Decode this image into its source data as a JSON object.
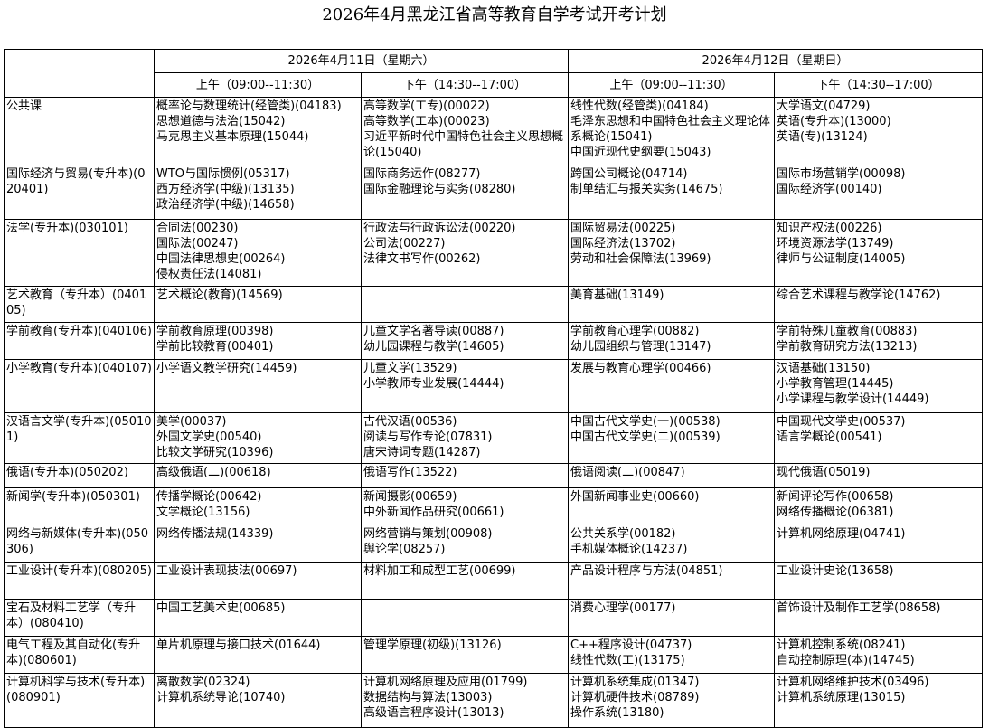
{
  "title": "2026年4月黑龙江省高等教育自学考试开考计划",
  "days": [
    {
      "date": "2026年4月11日（星期六）",
      "sessions": [
        "上午（09:00--11:30）",
        "下午（14:30--17:00）"
      ]
    },
    {
      "date": "2026年4月12日（星期日）",
      "sessions": [
        "上午（09:00--11:30）",
        "下午（14:30--17:00）"
      ]
    }
  ],
  "rows": [
    {
      "major": "公共课",
      "cells": [
        [
          "概率论与数理统计(经管类)(04183)",
          "思想道德与法治(15042)",
          "马克思主义基本原理(15044)"
        ],
        [
          "高等数学(工专)(00022)",
          "高等数学(工本)(00023)",
          "习近平新时代中国特色社会主义思想概论(15040)"
        ],
        [
          "线性代数(经管类)(04184)",
          "毛泽东思想和中国特色社会主义理论体系概论(15041)",
          "中国近现代史纲要(15043)"
        ],
        [
          "大学语文(04729)",
          "英语(专升本)(13000)",
          "英语(专)(13124)"
        ]
      ]
    },
    {
      "major": "国际经济与贸易(专升本)(020401)",
      "cells": [
        [
          "WTO与国际惯例(05317)",
          "西方经济学(中级)(13135)",
          "政治经济学(中级)(14658)"
        ],
        [
          "国际商务运作(08277)",
          "国际金融理论与实务(08280)"
        ],
        [
          "跨国公司概论(04714)",
          "制单结汇与报关实务(14675)"
        ],
        [
          "国际市场营销学(00098)",
          "国际经济学(00140)"
        ]
      ]
    },
    {
      "major": "法学(专升本)(030101)",
      "cells": [
        [
          "合同法(00230)",
          "国际法(00247)",
          "中国法律思想史(00264)",
          "侵权责任法(14081)"
        ],
        [
          "行政法与行政诉讼法(00220)",
          "公司法(00227)",
          "法律文书写作(00262)"
        ],
        [
          "国际贸易法(00225)",
          "国际经济法(13702)",
          "劳动和社会保障法(13969)"
        ],
        [
          "知识产权法(00226)",
          "环境资源法学(13749)",
          "律师与公证制度(14005)"
        ]
      ]
    },
    {
      "major": "艺术教育（专升本）(040105)",
      "cells": [
        [
          "艺术概论(教育)(14569)"
        ],
        [],
        [
          "美育基础(13149)"
        ],
        [
          "综合艺术课程与教学论(14762)"
        ]
      ]
    },
    {
      "major": "学前教育(专升本)(040106)",
      "cells": [
        [
          "学前教育原理(00398)",
          "学前比较教育(00401)"
        ],
        [
          "儿童文学名著导读(00887)",
          "幼儿园课程与教学(14605)"
        ],
        [
          "学前教育心理学(00882)",
          "幼儿园组织与管理(13147)"
        ],
        [
          "学前特殊儿童教育(00883)",
          "学前教育研究方法(13213)"
        ]
      ]
    },
    {
      "major": "小学教育(专升本)(040107)",
      "cells": [
        [
          "小学语文教学研究(14459)"
        ],
        [
          "儿童文学(13529)",
          "小学教师专业发展(14444)"
        ],
        [
          "发展与教育心理学(00466)"
        ],
        [
          "汉语基础(13150)",
          "小学教育管理(14445)",
          "小学课程与教学设计(14449)"
        ]
      ]
    },
    {
      "major": "汉语言文学(专升本)(050101)",
      "cells": [
        [
          "美学(00037)",
          "外国文学史(00540)",
          "比较文学研究(10396)"
        ],
        [
          "古代汉语(00536)",
          "阅读与写作专论(07831)",
          "唐宋诗词专题(14287)"
        ],
        [
          "中国古代文学史(一)(00538)",
          "中国古代文学史(二)(00539)"
        ],
        [
          "中国现代文学史(00537)",
          "语言学概论(00541)"
        ]
      ]
    },
    {
      "major": "俄语(专升本)(050202)",
      "cells": [
        [
          "高级俄语(二)(00618)"
        ],
        [
          "俄语写作(13522)"
        ],
        [
          "俄语阅读(二)(00847)"
        ],
        [
          "现代俄语(05019)"
        ]
      ]
    },
    {
      "major": "新闻学(专升本)(050301)",
      "cells": [
        [
          "传播学概论(00642)",
          "文学概论(13156)"
        ],
        [
          "新闻摄影(00659)",
          "中外新闻作品研究(00661)"
        ],
        [
          "外国新闻事业史(00660)"
        ],
        [
          "新闻评论写作(00658)",
          "网络传播概论(06381)"
        ]
      ]
    },
    {
      "major": "网络与新媒体(专升本)(050306)",
      "cells": [
        [
          "网络传播法规(14339)"
        ],
        [
          "网络营销与策划(00908)",
          "舆论学(08257)"
        ],
        [
          "公共关系学(00182)",
          "手机媒体概论(14237)"
        ],
        [
          "计算机网络原理(04741)"
        ]
      ]
    },
    {
      "major": "工业设计(专升本)(080205)",
      "cells": [
        [
          "工业设计表现技法(00697)"
        ],
        [
          "材料加工和成型工艺(00699)"
        ],
        [
          "产品设计程序与方法(04851)"
        ],
        [
          "工业设计史论(13658)"
        ]
      ]
    },
    {
      "major": "宝石及材料工艺学（专升本）(080410)",
      "cells": [
        [
          "中国工艺美术史(00685)"
        ],
        [],
        [
          "消费心理学(00177)"
        ],
        [
          "首饰设计及制作工艺学(08658)"
        ]
      ]
    },
    {
      "major": "电气工程及其自动化(专升本)(080601)",
      "cells": [
        [
          "单片机原理与接口技术(01644)"
        ],
        [
          "管理学原理(初级)(13126)"
        ],
        [
          "C++程序设计(04737)",
          "线性代数(工)(13175)"
        ],
        [
          "计算机控制系统(08241)",
          "自动控制原理(本)(14745)"
        ]
      ]
    },
    {
      "major": "计算机科学与技术(专升本)(080901)",
      "cells": [
        [
          "离散数学(02324)",
          "计算机系统导论(10740)"
        ],
        [
          "计算机网络原理及应用(01799)",
          "数据结构与算法(13003)",
          "高级语言程序设计(13013)"
        ],
        [
          "计算机系统集成(01347)",
          "计算机硬件技术(08789)",
          "操作系统(13180)"
        ],
        [
          "计算机网络维护技术(03496)",
          "计算机系统原理(13015)"
        ]
      ]
    }
  ]
}
